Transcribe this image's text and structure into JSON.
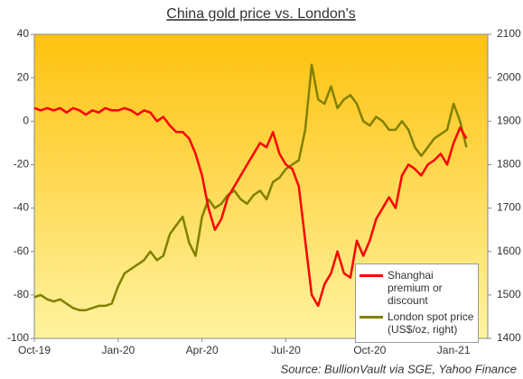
{
  "chart_data": {
    "type": "line",
    "title": "China gold price vs. London's",
    "source": "Source: BullionVault via SGE, Yahoo Finance",
    "categories": [
      "Oct-19",
      null,
      null,
      null,
      null,
      null,
      null,
      null,
      null,
      null,
      null,
      null,
      null,
      "Jan-20",
      null,
      null,
      null,
      null,
      null,
      null,
      null,
      null,
      null,
      null,
      null,
      null,
      "Apr-20",
      null,
      null,
      null,
      null,
      null,
      null,
      null,
      null,
      null,
      null,
      null,
      null,
      "Jul-20",
      null,
      null,
      null,
      null,
      null,
      null,
      null,
      null,
      null,
      null,
      null,
      null,
      "Oct-20",
      null,
      null,
      null,
      null,
      null,
      null,
      null,
      null,
      null,
      null,
      null,
      null,
      "Jan-21",
      null,
      null
    ],
    "series": [
      {
        "name": "Shanghai premium or discount",
        "color": "#ff0000",
        "axis": "y",
        "values": [
          6,
          5,
          6,
          5,
          6,
          4,
          6,
          5,
          3,
          5,
          4,
          6,
          5,
          5,
          6,
          5,
          3,
          5,
          4,
          0,
          2,
          -2,
          -5,
          -5,
          -8,
          -15,
          -25,
          -40,
          -50,
          -45,
          -35,
          -30,
          -25,
          -20,
          -15,
          -10,
          -12,
          -5,
          -15,
          -20,
          -22,
          -30,
          -55,
          -80,
          -85,
          -75,
          -70,
          -60,
          -70,
          -72,
          -55,
          -62,
          -55,
          -45,
          -40,
          -35,
          -40,
          -25,
          -20,
          -22,
          -25,
          -20,
          -18,
          -15,
          -20,
          -10,
          -3,
          -8
        ]
      },
      {
        "name": "London spot price (US$/oz, right)",
        "color": "#808000",
        "axis": "y2",
        "values": [
          1495,
          1500,
          1490,
          1485,
          1490,
          1480,
          1470,
          1465,
          1465,
          1470,
          1475,
          1475,
          1480,
          1520,
          1550,
          1560,
          1570,
          1580,
          1600,
          1580,
          1590,
          1640,
          1660,
          1680,
          1620,
          1590,
          1680,
          1720,
          1700,
          1710,
          1730,
          1740,
          1720,
          1710,
          1730,
          1740,
          1720,
          1760,
          1770,
          1790,
          1800,
          1810,
          1880,
          2030,
          1950,
          1940,
          1980,
          1930,
          1950,
          1960,
          1940,
          1900,
          1890,
          1910,
          1900,
          1880,
          1880,
          1900,
          1880,
          1840,
          1820,
          1840,
          1860,
          1870,
          1880,
          1940,
          1900,
          1840
        ]
      }
    ],
    "ylim": [
      -100,
      40
    ],
    "yticks": [
      -100,
      -80,
      -60,
      -40,
      -20,
      0,
      20,
      40
    ],
    "y2lim": [
      1400,
      2100
    ],
    "y2ticks": [
      1400,
      1500,
      1600,
      1700,
      1800,
      1900,
      2000,
      2100
    ],
    "grid": false
  }
}
